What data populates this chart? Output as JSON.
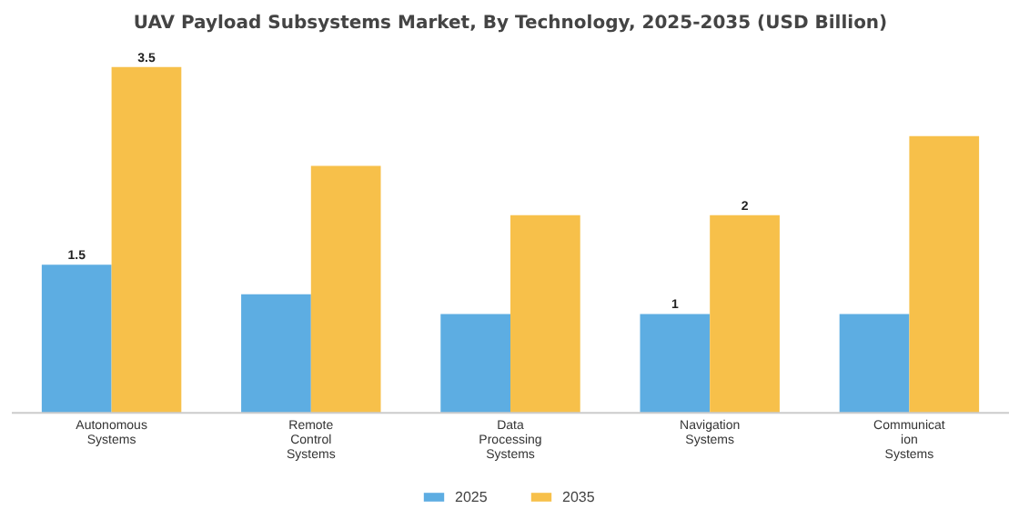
{
  "chart_data": {
    "type": "bar",
    "title": "UAV Payload Subsystems Market, By Technology, 2025-2035 (USD Billion)",
    "categories": [
      "Autonomous\nSystems",
      "Remote\nControl\nSystems",
      "Data\nProcessing\nSystems",
      "Navigation\nSystems",
      "Communicat\nion\nSystems"
    ],
    "series": [
      {
        "name": "2025",
        "color": "#5dade2",
        "values": [
          1.5,
          1.2,
          1.0,
          1.0,
          1.0
        ],
        "value_labels": [
          "1.5",
          null,
          null,
          "1",
          null
        ]
      },
      {
        "name": "2035",
        "color": "#f7c04a",
        "values": [
          3.5,
          2.5,
          2.0,
          2.0,
          2.8
        ],
        "value_labels": [
          "3.5",
          null,
          null,
          "2",
          null
        ]
      }
    ],
    "tick_labels": "x",
    "legend": "bottom"
  }
}
